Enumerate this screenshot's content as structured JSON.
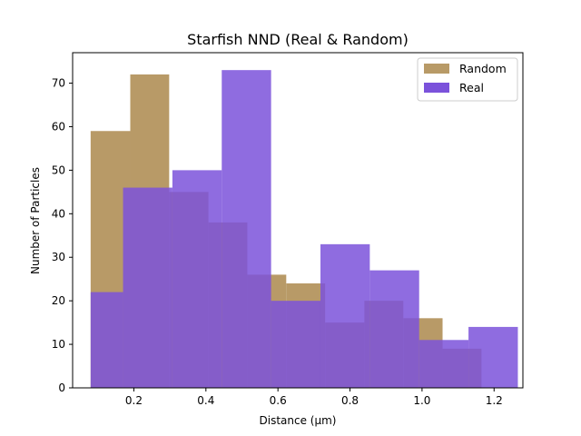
{
  "chart_data": {
    "type": "bar",
    "subtype": "overlapping-histogram",
    "title": "Starfish NND (Real & Random)",
    "xlabel": "Distance (µm)",
    "ylabel": "Number of Particles",
    "xlim": [
      0.03,
      1.28
    ],
    "ylim": [
      0,
      77
    ],
    "xticks": [
      0.2,
      0.4,
      0.6,
      0.8,
      1.0,
      1.2
    ],
    "xtick_labels": [
      "0.2",
      "0.4",
      "0.6",
      "0.8",
      "1.0",
      "1.2"
    ],
    "yticks": [
      0,
      10,
      20,
      30,
      40,
      50,
      60,
      70
    ],
    "ytick_labels": [
      "0",
      "10",
      "20",
      "30",
      "40",
      "50",
      "60",
      "70"
    ],
    "grid": false,
    "legend_position": "top-right",
    "series": [
      {
        "name": "Random",
        "color": "#b89a67",
        "bins": [
          {
            "x0": 0.08,
            "x1": 0.19,
            "count": 59
          },
          {
            "x0": 0.19,
            "x1": 0.298,
            "count": 72
          },
          {
            "x0": 0.298,
            "x1": 0.407,
            "count": 45
          },
          {
            "x0": 0.407,
            "x1": 0.515,
            "count": 38
          },
          {
            "x0": 0.515,
            "x1": 0.623,
            "count": 26
          },
          {
            "x0": 0.623,
            "x1": 0.731,
            "count": 24
          },
          {
            "x0": 0.731,
            "x1": 0.84,
            "count": 15
          },
          {
            "x0": 0.84,
            "x1": 0.948,
            "count": 20
          },
          {
            "x0": 0.948,
            "x1": 1.057,
            "count": 16
          },
          {
            "x0": 1.057,
            "x1": 1.165,
            "count": 9
          }
        ]
      },
      {
        "name": "Real",
        "color": "#7b52db",
        "bins": [
          {
            "x0": 0.08,
            "x1": 0.17,
            "count": 22
          },
          {
            "x0": 0.17,
            "x1": 0.307,
            "count": 46
          },
          {
            "x0": 0.307,
            "x1": 0.444,
            "count": 50
          },
          {
            "x0": 0.444,
            "x1": 0.581,
            "count": 73
          },
          {
            "x0": 0.581,
            "x1": 0.718,
            "count": 20
          },
          {
            "x0": 0.718,
            "x1": 0.855,
            "count": 33
          },
          {
            "x0": 0.855,
            "x1": 0.992,
            "count": 27
          },
          {
            "x0": 0.992,
            "x1": 1.129,
            "count": 11
          },
          {
            "x0": 1.129,
            "x1": 1.266,
            "count": 14
          }
        ]
      }
    ]
  }
}
